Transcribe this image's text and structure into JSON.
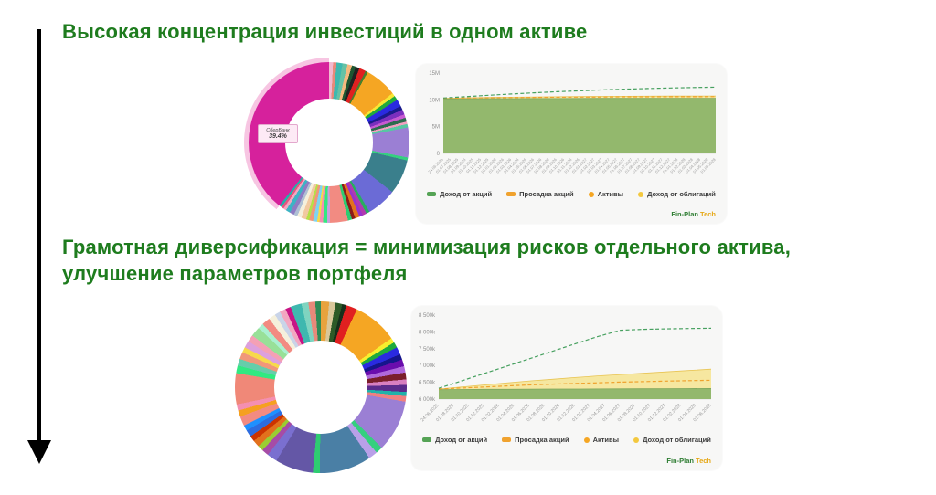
{
  "slide": {
    "title_top": "Высокая концентрация инвестиций в одном активе",
    "title_bottom": "Грамотная диверсификация = минимизация рисков отдельного актива, улучшение параметров портфеля",
    "accent_color": "#1e7c1e",
    "arrow_color": "#000000"
  },
  "watermark": {
    "part1": "Fin-Plan",
    "part2": "Tech",
    "color1": "#2e7d32",
    "color2": "#e6a817"
  },
  "legend": [
    {
      "label": "Доход от акций",
      "swatch": "square",
      "color": "#55a355"
    },
    {
      "label": "Просадка акций",
      "swatch": "square",
      "color": "#f0a22e"
    },
    {
      "label": "Активы",
      "swatch": "dot",
      "color": "#f5a623"
    },
    {
      "label": "Доход от облигаций",
      "swatch": "dot",
      "color": "#f3c83e"
    }
  ],
  "chart_data": [
    {
      "id": "donut_concentrated",
      "type": "pie",
      "legend_position": "none",
      "highlight": {
        "label": "СберБанк",
        "value": "39.4%"
      },
      "rim_color": "#f7c5e2",
      "slices": [
        {
          "c": "#f2b8cf",
          "w": 0.8
        },
        {
          "c": "#e8897a",
          "w": 0.7
        },
        {
          "c": "#3fb8af",
          "w": 1.2
        },
        {
          "c": "#66c2a5",
          "w": 1.0
        },
        {
          "c": "#f5b97f",
          "w": 0.9
        },
        {
          "c": "#1e5631",
          "w": 0.8
        },
        {
          "c": "#222222",
          "w": 0.8
        },
        {
          "c": "#e02020",
          "w": 1.3
        },
        {
          "c": "#4a7f2c",
          "w": 0.5
        },
        {
          "c": "#f5a623",
          "w": 6.5
        },
        {
          "c": "#f7e733",
          "w": 0.7
        },
        {
          "c": "#1faa3c",
          "w": 0.9
        },
        {
          "c": "#2a2ae0",
          "w": 1.4
        },
        {
          "c": "#1a1a8c",
          "w": 0.8
        },
        {
          "c": "#7b2fbe",
          "w": 1.0
        },
        {
          "c": "#c85ad2",
          "w": 0.7
        },
        {
          "c": "#2d6a4f",
          "w": 0.8
        },
        {
          "c": "#f2a0c0",
          "w": 0.5
        },
        {
          "c": "#57c7a3",
          "w": 0.7
        },
        {
          "c": "#9b7fd4",
          "w": 6.0
        },
        {
          "c": "#35d07f",
          "w": 0.6
        },
        {
          "c": "#3a7f8c",
          "w": 7.0
        },
        {
          "c": "#6b6bd6",
          "w": 6.0
        },
        {
          "c": "#27ae60",
          "w": 0.7
        },
        {
          "c": "#b03ab0",
          "w": 0.8
        },
        {
          "c": "#9932cc",
          "w": 0.7
        },
        {
          "c": "#e2711d",
          "w": 0.9
        },
        {
          "c": "#8b1a1a",
          "w": 0.7
        },
        {
          "c": "#2ecc71",
          "w": 0.8
        },
        {
          "c": "#f28b82",
          "w": 3.6
        },
        {
          "c": "#c9a0dc",
          "w": 0.6
        },
        {
          "c": "#31e981",
          "w": 0.8
        },
        {
          "c": "#f48fb1",
          "w": 0.7
        },
        {
          "c": "#f7d94c",
          "w": 0.5
        },
        {
          "c": "#7fd4f0",
          "w": 0.8
        },
        {
          "c": "#f0977a",
          "w": 0.8
        },
        {
          "c": "#b5e048",
          "w": 0.6
        },
        {
          "c": "#f2c9a0",
          "w": 1.0
        },
        {
          "c": "#f5f0dc",
          "w": 0.9
        },
        {
          "c": "#aebfd4",
          "w": 0.7
        },
        {
          "c": "#8e7cc3",
          "w": 0.9
        },
        {
          "c": "#3cb4c4",
          "w": 0.9
        },
        {
          "c": "#f3a6c0",
          "w": 0.6
        },
        {
          "c": "#e75480",
          "w": 0.5
        },
        {
          "c": "#20b2aa",
          "w": 0.5
        },
        {
          "c": "#d6219c",
          "w": 39.4
        }
      ]
    },
    {
      "id": "portfolio_concentrated",
      "type": "area",
      "unit": "M",
      "ylim": [
        0,
        15
      ],
      "yticks": [
        {
          "v": 0,
          "label": "0"
        },
        {
          "v": 5,
          "label": "5M"
        },
        {
          "v": 10,
          "label": "10M"
        },
        {
          "v": 15,
          "label": "15M"
        }
      ],
      "x_labels": [
        "24.06.2025",
        "01.07.2025",
        "01.08.2025",
        "01.09.2025",
        "01.10.2025",
        "01.11.2025",
        "01.12.2025",
        "01.01.2026",
        "01.02.2026",
        "01.03.2026",
        "01.04.2026",
        "01.05.2026",
        "01.06.2026",
        "01.07.2026",
        "01.08.2026",
        "01.09.2026",
        "01.10.2026",
        "01.11.2026",
        "01.12.2026",
        "01.01.2027",
        "01.02.2027",
        "01.03.2027",
        "01.04.2027",
        "01.05.2027",
        "01.06.2027",
        "01.07.2027",
        "01.08.2027",
        "01.09.2027",
        "01.10.2027",
        "01.11.2027",
        "01.12.2027",
        "01.01.2028",
        "01.02.2028",
        "01.03.2028",
        "01.04.2028",
        "01.05.2028",
        "01.06.2028"
      ],
      "series": [
        {
          "name": "Доход от облигаций",
          "style": "area",
          "fill": "#f6e7a0",
          "stroke": "#e8c452",
          "values": [
            10.3,
            10.38,
            10.45,
            10.5,
            10.55,
            10.58,
            10.62,
            10.65,
            10.67,
            10.69,
            10.7,
            10.72,
            10.73
          ]
        },
        {
          "name": "Доход от акций",
          "style": "area",
          "fill": "#93b86d",
          "stroke": "#7ea55c",
          "values": [
            10.2,
            10.21,
            10.22,
            10.23,
            10.24,
            10.25,
            10.26,
            10.27,
            10.28,
            10.28,
            10.29,
            10.3,
            10.3
          ]
        },
        {
          "name": "Просадка акций",
          "style": "dashed",
          "stroke": "#f0a22e",
          "values": [
            10.32,
            10.36,
            10.4,
            10.44,
            10.47,
            10.5,
            10.52,
            10.54,
            10.56,
            10.57,
            10.58,
            10.59,
            10.6
          ]
        },
        {
          "name": "Активы",
          "style": "dashed",
          "stroke": "#46a05f",
          "values": [
            10.35,
            10.6,
            10.85,
            11.1,
            11.32,
            11.52,
            11.7,
            11.86,
            12.0,
            12.12,
            12.22,
            12.3,
            12.37
          ]
        }
      ],
      "legend_position": "bottom",
      "grid": false
    },
    {
      "id": "donut_diversified",
      "type": "pie",
      "legend_position": "none",
      "slices": [
        {
          "c": "#e8a33d",
          "w": 1.2
        },
        {
          "c": "#d9c79a",
          "w": 0.9
        },
        {
          "c": "#2d5a27",
          "w": 1.0
        },
        {
          "c": "#16301b",
          "w": 0.6
        },
        {
          "c": "#e02020",
          "w": 1.6
        },
        {
          "c": "#f5a623",
          "w": 6.5
        },
        {
          "c": "#f7ef2e",
          "w": 0.7
        },
        {
          "c": "#1faa3c",
          "w": 0.8
        },
        {
          "c": "#2a2ae0",
          "w": 1.1
        },
        {
          "c": "#15158c",
          "w": 0.8
        },
        {
          "c": "#6a0dad",
          "w": 1.0
        },
        {
          "c": "#b069db",
          "w": 0.9
        },
        {
          "c": "#7a1f2b",
          "w": 1.0
        },
        {
          "c": "#d87fc0",
          "w": 0.8
        },
        {
          "c": "#5b2c8c",
          "w": 1.0
        },
        {
          "c": "#20b2aa",
          "w": 0.6
        },
        {
          "c": "#f08080",
          "w": 0.8
        },
        {
          "c": "#9b7fd4",
          "w": 7.5
        },
        {
          "c": "#35d07f",
          "w": 1.0
        },
        {
          "c": "#b9a0e8",
          "w": 1.3
        },
        {
          "c": "#4a7fa5",
          "w": 7.5
        },
        {
          "c": "#2ecc71",
          "w": 1.0
        },
        {
          "c": "#6457a6",
          "w": 5.5
        },
        {
          "c": "#7a6fd0",
          "w": 1.5
        },
        {
          "c": "#a64ca6",
          "w": 1.0
        },
        {
          "c": "#9acd32",
          "w": 0.8
        },
        {
          "c": "#e2711d",
          "w": 1.0
        },
        {
          "c": "#cc3300",
          "w": 0.8
        },
        {
          "c": "#2d6cdf",
          "w": 1.0
        },
        {
          "c": "#1e90ff",
          "w": 0.8
        },
        {
          "c": "#f28b82",
          "w": 1.4
        },
        {
          "c": "#f5a020",
          "w": 0.9
        },
        {
          "c": "#f48fb1",
          "w": 0.9
        },
        {
          "c": "#f08878",
          "w": 4.5
        },
        {
          "c": "#31e981",
          "w": 1.1
        },
        {
          "c": "#66cdaa",
          "w": 1.0
        },
        {
          "c": "#f0977a",
          "w": 1.0
        },
        {
          "c": "#f7d94c",
          "w": 0.8
        },
        {
          "c": "#dda0dd",
          "w": 1.0
        },
        {
          "c": "#f4a0b5",
          "w": 1.0
        },
        {
          "c": "#98e098",
          "w": 1.4
        },
        {
          "c": "#aaf0d1",
          "w": 0.8
        },
        {
          "c": "#f28b82",
          "w": 1.2
        },
        {
          "c": "#f5f0dc",
          "w": 1.0
        },
        {
          "c": "#c9d4e8",
          "w": 0.8
        },
        {
          "c": "#f3a6c0",
          "w": 0.9
        },
        {
          "c": "#c71585",
          "w": 0.8
        },
        {
          "c": "#3fb8af",
          "w": 1.6
        },
        {
          "c": "#7fd4c0",
          "w": 1.0
        },
        {
          "c": "#e8897a",
          "w": 1.0
        },
        {
          "c": "#2e8b57",
          "w": 0.8
        }
      ]
    },
    {
      "id": "portfolio_diversified",
      "type": "area",
      "unit": "k",
      "ylim": [
        6000,
        8500
      ],
      "yticks": [
        {
          "v": 6000,
          "label": "6 000k"
        },
        {
          "v": 6500,
          "label": "6 500k"
        },
        {
          "v": 7000,
          "label": "7 000k"
        },
        {
          "v": 7500,
          "label": "7 500k"
        },
        {
          "v": 8000,
          "label": "8 000k"
        },
        {
          "v": 8500,
          "label": "8 500k"
        }
      ],
      "x_labels": [
        "24.06.2025",
        "01.08.2025",
        "01.10.2025",
        "01.12.2025",
        "01.02.2026",
        "01.04.2026",
        "01.06.2026",
        "01.08.2026",
        "01.10.2026",
        "01.12.2026",
        "01.02.2027",
        "01.04.2027",
        "01.06.2027",
        "01.08.2027",
        "01.10.2027",
        "01.12.2027",
        "01.02.2028",
        "01.04.2028",
        "01.06.2028"
      ],
      "series": [
        {
          "name": "Доход от облигаций",
          "style": "area",
          "fill": "#f6e7a0",
          "stroke": "#e8c452",
          "values": [
            6300,
            6360,
            6420,
            6480,
            6540,
            6590,
            6640,
            6690,
            6730,
            6770,
            6810,
            6850,
            6890
          ]
        },
        {
          "name": "Доход от акций",
          "style": "area",
          "fill": "#93b86d",
          "stroke": "#7ea55c",
          "values": [
            6280,
            6285,
            6290,
            6292,
            6295,
            6298,
            6300,
            6302,
            6305,
            6308,
            6310,
            6312,
            6315
          ]
        },
        {
          "name": "Просадка акций",
          "style": "dashed",
          "stroke": "#f0a22e",
          "values": [
            6300,
            6330,
            6360,
            6390,
            6420,
            6445,
            6465,
            6485,
            6505,
            6520,
            6535,
            6548,
            6560
          ]
        },
        {
          "name": "Активы",
          "style": "dashed",
          "stroke": "#46a05f",
          "values": [
            6320,
            6540,
            6760,
            6980,
            7200,
            7420,
            7640,
            7860,
            8050,
            8075,
            8090,
            8100,
            8110
          ]
        }
      ],
      "legend_position": "bottom",
      "grid": false
    }
  ]
}
